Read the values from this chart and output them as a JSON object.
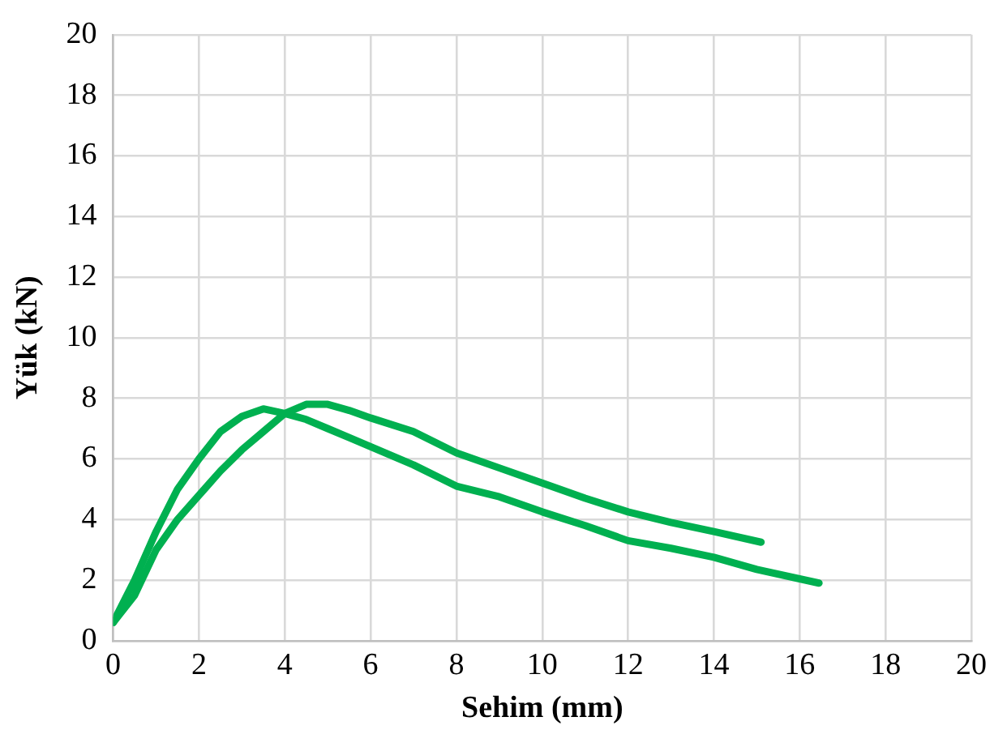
{
  "chart_data": {
    "type": "line",
    "xlabel": "Sehim (mm)",
    "ylabel": "Yük (kN)",
    "xlim": [
      0,
      20
    ],
    "xticks": [
      0,
      2,
      4,
      6,
      8,
      10,
      12,
      14,
      16,
      18,
      20
    ],
    "ylim": [
      0,
      20
    ],
    "yticks": [
      0,
      2,
      4,
      6,
      8,
      10,
      12,
      14,
      16,
      18,
      20
    ],
    "grid": true,
    "legend": false,
    "marker": "none",
    "line_style": "solid",
    "series": [
      {
        "color": "#00b050",
        "x": [
          0,
          0.5,
          1,
          1.5,
          2,
          2.5,
          3,
          3.5,
          4,
          4.5,
          5,
          5.5,
          6,
          7,
          8,
          9,
          10,
          11,
          12,
          13,
          14,
          15,
          16.45
        ],
        "values": [
          0.6,
          2.0,
          3.6,
          5.0,
          6.0,
          6.9,
          7.4,
          7.65,
          7.5,
          7.3,
          7.0,
          6.7,
          6.4,
          5.8,
          5.1,
          4.75,
          4.25,
          3.8,
          3.3,
          3.05,
          2.75,
          2.35,
          1.9
        ]
      },
      {
        "color": "#00b050",
        "x": [
          0,
          0.5,
          1,
          1.5,
          2,
          2.5,
          3,
          3.5,
          4,
          4.5,
          5,
          5.5,
          6,
          7,
          8,
          9,
          10,
          11,
          12,
          13,
          14,
          15.1
        ],
        "values": [
          0.6,
          1.5,
          3.0,
          4.0,
          4.8,
          5.6,
          6.3,
          6.9,
          7.5,
          7.8,
          7.8,
          7.6,
          7.35,
          6.9,
          6.2,
          5.7,
          5.2,
          4.7,
          4.25,
          3.9,
          3.6,
          3.25
        ]
      }
    ]
  }
}
